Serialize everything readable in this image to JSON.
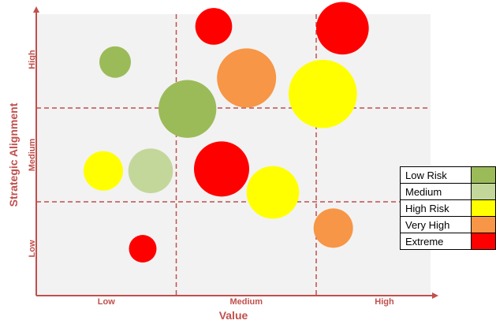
{
  "chart_data": {
    "type": "scatter",
    "title": "",
    "xlabel": "Value",
    "ylabel": "Strategic Alignment",
    "x_ticks": [
      "Low",
      "Medium",
      "High"
    ],
    "y_ticks": [
      "Low",
      "Medium",
      "High"
    ],
    "xlim": [
      0,
      3
    ],
    "ylim": [
      0,
      3
    ],
    "grid": "dashed 3x3",
    "legend_placement": "right",
    "points": [
      {
        "x": 1.35,
        "y": 2.87,
        "size": 0.28,
        "risk": "Extreme"
      },
      {
        "x": 2.33,
        "y": 2.85,
        "size": 0.4,
        "risk": "Extreme"
      },
      {
        "x": 0.6,
        "y": 2.49,
        "size": 0.24,
        "risk": "Low Risk"
      },
      {
        "x": 1.6,
        "y": 2.32,
        "size": 0.45,
        "risk": "Very High"
      },
      {
        "x": 2.18,
        "y": 2.15,
        "size": 0.52,
        "risk": "High Risk"
      },
      {
        "x": 1.15,
        "y": 1.99,
        "size": 0.44,
        "risk": "Low Risk"
      },
      {
        "x": 1.41,
        "y": 1.35,
        "size": 0.42,
        "risk": "Extreme"
      },
      {
        "x": 0.51,
        "y": 1.33,
        "size": 0.3,
        "risk": "High Risk"
      },
      {
        "x": 0.87,
        "y": 1.33,
        "size": 0.34,
        "risk": "Medium"
      },
      {
        "x": 1.8,
        "y": 1.1,
        "size": 0.4,
        "risk": "High Risk"
      },
      {
        "x": 2.26,
        "y": 0.72,
        "size": 0.3,
        "risk": "Very High"
      },
      {
        "x": 0.81,
        "y": 0.5,
        "size": 0.21,
        "risk": "Extreme"
      }
    ]
  },
  "legend": [
    {
      "label": "Low Risk",
      "color": "#9bbb59"
    },
    {
      "label": "Medium",
      "color": "#c4d79b"
    },
    {
      "label": "High Risk",
      "color": "#ffff00"
    },
    {
      "label": "Very High",
      "color": "#f79646"
    },
    {
      "label": "Extreme",
      "color": "#ff0000"
    }
  ],
  "colors": {
    "axis": "#c0504d",
    "grid": "#c0504d",
    "plot_bg": "#f2f2f2"
  }
}
